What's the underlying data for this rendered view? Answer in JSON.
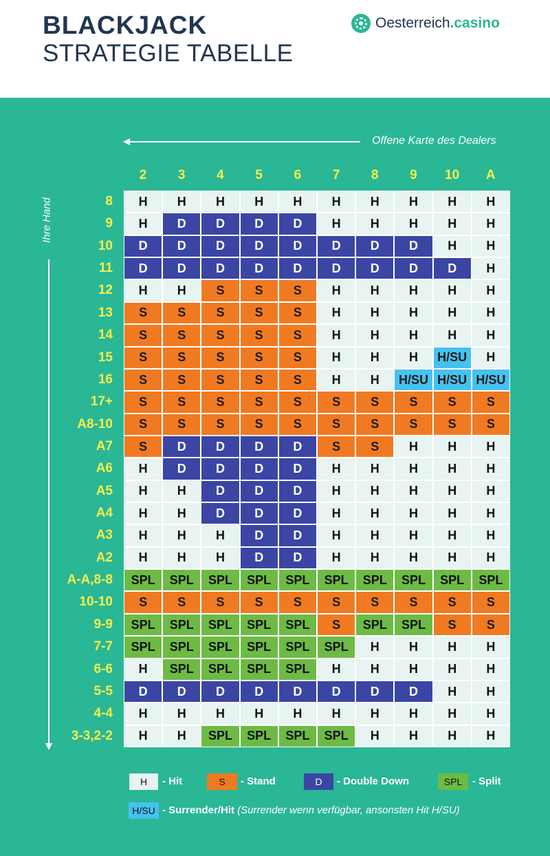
{
  "header": {
    "title": "BLACKJACK",
    "subtitle": "STRATEGIE TABELLE",
    "brand_name": "Oesterreich",
    "brand_suffix": ".casino",
    "brand_icon": "roulette-wheel-icon"
  },
  "axes": {
    "dealer_label": "Offene Karte des Dealers",
    "hand_label": "Ihre Hand"
  },
  "colors": {
    "background": "#2ab795",
    "H": "#e7f4f1",
    "S": "#f07a22",
    "D": "#3b45a4",
    "SPL": "#6dbb45",
    "HSU": "#45c2ef",
    "label_yellow": "#f6ee4c"
  },
  "table": {
    "columns": [
      "2",
      "3",
      "4",
      "5",
      "6",
      "7",
      "8",
      "9",
      "10",
      "A"
    ],
    "rows": [
      {
        "hand": "8",
        "actions": [
          "H",
          "H",
          "H",
          "H",
          "H",
          "H",
          "H",
          "H",
          "H",
          "H"
        ]
      },
      {
        "hand": "9",
        "actions": [
          "H",
          "D",
          "D",
          "D",
          "D",
          "H",
          "H",
          "H",
          "H",
          "H"
        ]
      },
      {
        "hand": "10",
        "actions": [
          "D",
          "D",
          "D",
          "D",
          "D",
          "D",
          "D",
          "D",
          "H",
          "H"
        ]
      },
      {
        "hand": "11",
        "actions": [
          "D",
          "D",
          "D",
          "D",
          "D",
          "D",
          "D",
          "D",
          "D",
          "H"
        ]
      },
      {
        "hand": "12",
        "actions": [
          "H",
          "H",
          "S",
          "S",
          "S",
          "H",
          "H",
          "H",
          "H",
          "H"
        ]
      },
      {
        "hand": "13",
        "actions": [
          "S",
          "S",
          "S",
          "S",
          "S",
          "H",
          "H",
          "H",
          "H",
          "H"
        ]
      },
      {
        "hand": "14",
        "actions": [
          "S",
          "S",
          "S",
          "S",
          "S",
          "H",
          "H",
          "H",
          "H",
          "H"
        ]
      },
      {
        "hand": "15",
        "actions": [
          "S",
          "S",
          "S",
          "S",
          "S",
          "H",
          "H",
          "H",
          "H/SU",
          "H"
        ]
      },
      {
        "hand": "16",
        "actions": [
          "S",
          "S",
          "S",
          "S",
          "S",
          "H",
          "H",
          "H/SU",
          "H/SU",
          "H/SU"
        ]
      },
      {
        "hand": "17+",
        "actions": [
          "S",
          "S",
          "S",
          "S",
          "S",
          "S",
          "S",
          "S",
          "S",
          "S"
        ]
      },
      {
        "hand": "A8-10",
        "actions": [
          "S",
          "S",
          "S",
          "S",
          "S",
          "S",
          "S",
          "S",
          "S",
          "S"
        ]
      },
      {
        "hand": "A7",
        "actions": [
          "S",
          "D",
          "D",
          "D",
          "D",
          "S",
          "S",
          "H",
          "H",
          "H"
        ]
      },
      {
        "hand": "A6",
        "actions": [
          "H",
          "D",
          "D",
          "D",
          "D",
          "H",
          "H",
          "H",
          "H",
          "H"
        ]
      },
      {
        "hand": "A5",
        "actions": [
          "H",
          "H",
          "D",
          "D",
          "D",
          "H",
          "H",
          "H",
          "H",
          "H"
        ]
      },
      {
        "hand": "A4",
        "actions": [
          "H",
          "H",
          "D",
          "D",
          "D",
          "H",
          "H",
          "H",
          "H",
          "H"
        ]
      },
      {
        "hand": "A3",
        "actions": [
          "H",
          "H",
          "H",
          "D",
          "D",
          "H",
          "H",
          "H",
          "H",
          "H"
        ]
      },
      {
        "hand": "A2",
        "actions": [
          "H",
          "H",
          "H",
          "D",
          "D",
          "H",
          "H",
          "H",
          "H",
          "H"
        ]
      },
      {
        "hand": "A-A,8-8",
        "actions": [
          "SPL",
          "SPL",
          "SPL",
          "SPL",
          "SPL",
          "SPL",
          "SPL",
          "SPL",
          "SPL",
          "SPL"
        ]
      },
      {
        "hand": "10-10",
        "actions": [
          "S",
          "S",
          "S",
          "S",
          "S",
          "S",
          "S",
          "S",
          "S",
          "S"
        ]
      },
      {
        "hand": "9-9",
        "actions": [
          "SPL",
          "SPL",
          "SPL",
          "SPL",
          "SPL",
          "S",
          "SPL",
          "SPL",
          "S",
          "S"
        ]
      },
      {
        "hand": "7-7",
        "actions": [
          "SPL",
          "SPL",
          "SPL",
          "SPL",
          "SPL",
          "SPL",
          "H",
          "H",
          "H",
          "H"
        ]
      },
      {
        "hand": "6-6",
        "actions": [
          "H",
          "SPL",
          "SPL",
          "SPL",
          "SPL",
          "H",
          "H",
          "H",
          "H",
          "H"
        ]
      },
      {
        "hand": "5-5",
        "actions": [
          "D",
          "D",
          "D",
          "D",
          "D",
          "D",
          "D",
          "D",
          "H",
          "H"
        ]
      },
      {
        "hand": "4-4",
        "actions": [
          "H",
          "H",
          "H",
          "H",
          "H",
          "H",
          "H",
          "H",
          "H",
          "H"
        ]
      },
      {
        "hand": "3-3,2-2",
        "actions": [
          "H",
          "H",
          "SPL",
          "SPL",
          "SPL",
          "SPL",
          "H",
          "H",
          "H",
          "H"
        ]
      }
    ]
  },
  "legend": {
    "hit": {
      "code": "H",
      "label": "- Hit"
    },
    "stand": {
      "code": "S",
      "label": "- Stand"
    },
    "double": {
      "code": "D",
      "label": "- Double Down"
    },
    "split": {
      "code": "SPL",
      "label": "- Split"
    },
    "surrender": {
      "code": "H/SU",
      "label": "- Surrender/Hit",
      "note": "(Surrender wenn verfügbar, ansonsten Hit H/SU)"
    }
  }
}
